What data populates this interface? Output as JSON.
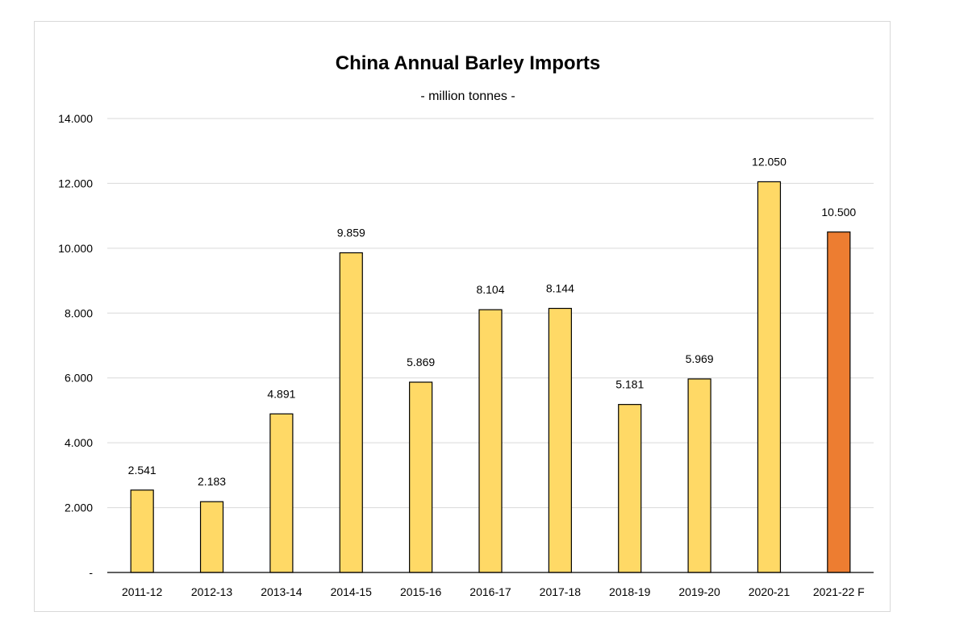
{
  "chart_data": {
    "type": "bar",
    "title": "China Annual Barley Imports",
    "subtitle": "- million tonnes -",
    "categories": [
      "2011-12",
      "2012-13",
      "2013-14",
      "2014-15",
      "2015-16",
      "2016-17",
      "2017-18",
      "2018-19",
      "2019-20",
      "2020-21",
      "2021-22 F"
    ],
    "values": [
      2.541,
      2.183,
      4.891,
      9.859,
      5.869,
      8.104,
      8.144,
      5.181,
      5.969,
      12.05,
      10.5
    ],
    "data_labels": [
      "2.541",
      "2.183",
      "4.891",
      "9.859",
      "5.869",
      "8.104",
      "8.144",
      "5.181",
      "5.969",
      "12.050",
      "10.500"
    ],
    "highlight_index": 10,
    "ylim": [
      0,
      14
    ],
    "yticks": [
      0,
      2,
      4,
      6,
      8,
      10,
      12,
      14
    ],
    "ytick_labels": [
      "-",
      "2.000",
      "4.000",
      "6.000",
      "8.000",
      "10.000",
      "12.000",
      "14.000"
    ],
    "grid": true,
    "legend": "none",
    "colors": {
      "bar": "#FFD966",
      "highlight": "#ED7D31",
      "outline": "#000000",
      "grid": "#d9d9d9"
    }
  }
}
